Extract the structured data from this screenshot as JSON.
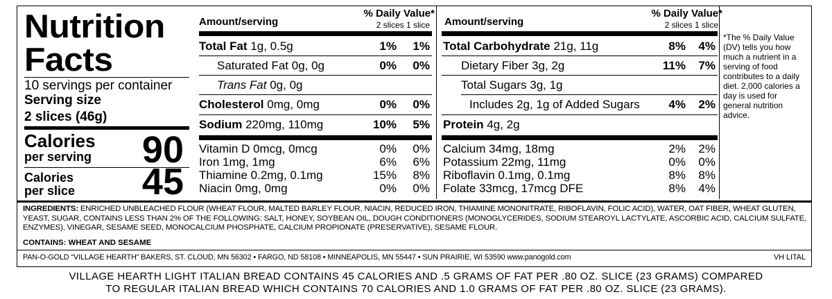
{
  "panel": {
    "title_line1": "Nutrition",
    "title_line2": "Facts",
    "servings_per_container": "10 servings per container",
    "serving_size_label": "Serving size",
    "serving_size_value": "2 slices (46g)",
    "calories_per_serving_label": "Calories",
    "calories_per_serving_sub": "per serving",
    "calories_per_serving_value": "90",
    "calories_per_slice_label": "Calories",
    "calories_per_slice_sub": "per slice",
    "calories_per_slice_value": "45"
  },
  "header": {
    "amount_serving": "Amount/serving",
    "daily_value": "% Daily Value*",
    "dv_columns": "2 slices 1 slice"
  },
  "left_nutrients": [
    {
      "name": "Total Fat",
      "amount": "1g, 0.5g",
      "pct1": "1%",
      "pct2": "1%"
    },
    {
      "name": "Saturated Fat",
      "amount": "0g, 0g",
      "pct1": "0%",
      "pct2": "0%"
    },
    {
      "name": "Trans Fat",
      "amount": "0g, 0g",
      "pct1": "",
      "pct2": ""
    },
    {
      "name": "Cholesterol",
      "amount": "0mg, 0mg",
      "pct1": "0%",
      "pct2": "0%"
    },
    {
      "name": "Sodium",
      "amount": "220mg, 110mg",
      "pct1": "10%",
      "pct2": "5%"
    }
  ],
  "right_nutrients": [
    {
      "name": "Total Carbohydrate",
      "amount": "21g, 11g",
      "pct1": "8%",
      "pct2": "4%"
    },
    {
      "name": "Dietary Fiber",
      "amount": "3g, 2g",
      "pct1": "11%",
      "pct2": "7%"
    },
    {
      "name": "Total Sugars",
      "amount": "3g, 1g",
      "pct1": "",
      "pct2": ""
    },
    {
      "name": "Includes 2g, 1g of Added Sugars",
      "amount": "",
      "pct1": "4%",
      "pct2": "2%"
    },
    {
      "name": "Protein",
      "amount": "4g, 2g",
      "pct1": "",
      "pct2": ""
    }
  ],
  "vitamins_left": [
    {
      "text": "Vitamin D 0mcg, 0mcg",
      "pct1": "0%",
      "pct2": "0%"
    },
    {
      "text": "Iron 1mg, 1mg",
      "pct1": "6%",
      "pct2": "6%"
    },
    {
      "text": "Thiamine 0.2mg, 0.1mg",
      "pct1": "15%",
      "pct2": "8%"
    },
    {
      "text": "Niacin 0mg, 0mg",
      "pct1": "0%",
      "pct2": "0%"
    }
  ],
  "vitamins_right": [
    {
      "text": "Calcium 34mg, 18mg",
      "pct1": "2%",
      "pct2": "2%"
    },
    {
      "text": "Potassium 22mg, 11mg",
      "pct1": "0%",
      "pct2": "0%"
    },
    {
      "text": "Riboflavin 0.1mg, 0.1mg",
      "pct1": "8%",
      "pct2": "8%"
    },
    {
      "text": "Folate 33mcg, 17mcg DFE",
      "pct1": "8%",
      "pct2": "4%"
    }
  ],
  "footnote": "*The % Daily Value (DV) tells you how much a nutrient in a serving of food contributes to a daily diet. 2,000 calories a day is used for general nutrition advice.",
  "ingredients": {
    "label": "INGREDIENTS:",
    "text": "ENRICHED UNBLEACHED FLOUR (WHEAT FLOUR, MALTED BARLEY FLOUR, NIACIN, REDUCED IRON, THIAMINE MONONITRATE, RIBOFLAVIN, FOLIC ACID), WATER, OAT FIBER, WHEAT GLUTEN, YEAST, SUGAR, CONTAINS LESS THAN 2% OF THE FOLLOWING: SALT, HONEY, SOYBEAN OIL, DOUGH CONDITIONERS (MONOGLYCERIDES, SODIUM STEAROYL LACTYLATE, ASCORBIC ACID, CALCIUM SULFATE, ENZYMES), VINEGAR, SESAME SEED, MONOCALCIUM PHOSPHATE, CALCIUM PROPIONATE (PRESERVATIVE), SESAME FLOUR.",
    "contains": "CONTAINS: WHEAT AND SESAME"
  },
  "bakers_line": "PAN-O-GOLD “VILLAGE HEARTH” BAKERS,  ST. CLOUD, MN 56302  •  FARGO, ND 58108 • MINNEAPOLIS, MN 55447 • SUN PRAIRIE, WI 53590   www.panogold.com",
  "code": "VH LITAL",
  "claim_line1": "VILLAGE HEARTH LIGHT ITALIAN BREAD CONTAINS 45 CALORIES AND .5 GRAMS OF FAT PER .80 OZ. SLICE (23 GRAMS) COMPARED",
  "claim_line2": "TO REGULAR ITALIAN BREAD WHICH CONTAINS 70 CALORIES AND 1.0 GRAMS OF FAT PER .80 OZ. SLICE (23 GRAMS)."
}
